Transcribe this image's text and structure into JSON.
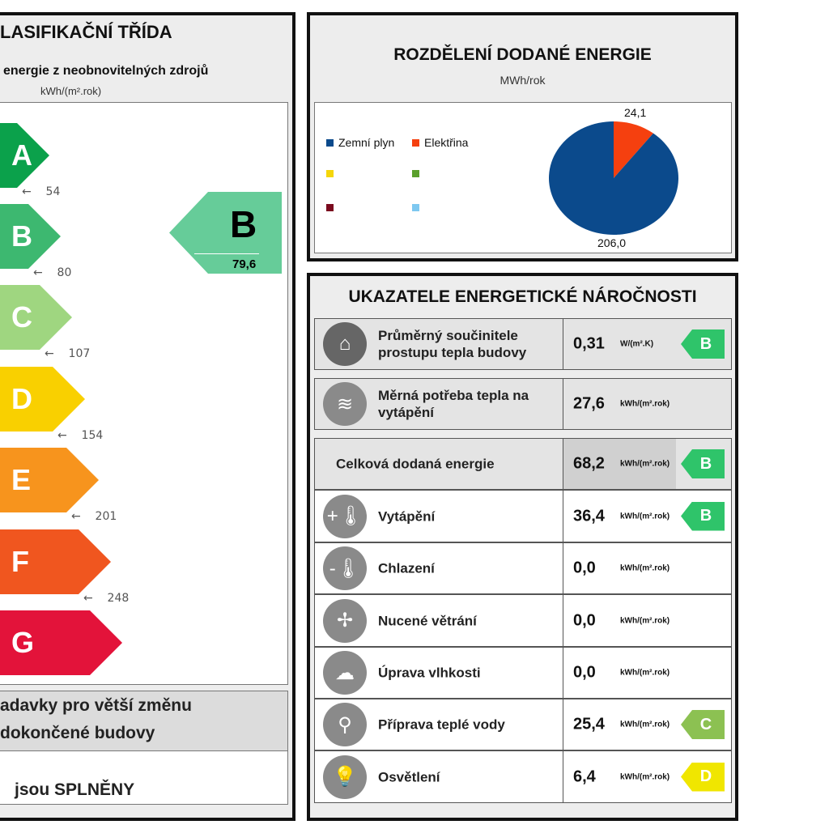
{
  "left": {
    "title": "LASIFIKAČNÍ TŘÍDA",
    "subtitle": "energie z neobnovitelných zdrojů",
    "unit": "kWh/(m².rok)",
    "classes": [
      {
        "label": "A",
        "color": "#0ba14b",
        "threshold": "54"
      },
      {
        "label": "B",
        "color": "#3db870",
        "threshold": "80"
      },
      {
        "label": "C",
        "color": "#9fd680",
        "threshold": "107"
      },
      {
        "label": "D",
        "color": "#f9d000",
        "threshold": "154"
      },
      {
        "label": "E",
        "color": "#f7941d",
        "threshold": "201"
      },
      {
        "label": "F",
        "color": "#f0561f",
        "threshold": "248"
      },
      {
        "label": "G",
        "color": "#e3133a",
        "threshold": ""
      }
    ],
    "indicator": {
      "label": "B",
      "value": "79,6",
      "color": "#66cc99"
    },
    "requirement_line1": "adavky pro větší změnu",
    "requirement_line2": "dokončené budovy",
    "result": "jsou SPLNĚNY"
  },
  "pie": {
    "title": "ROZDĚLENÍ DODANÉ ENERGIE",
    "unit": "MWh/rok",
    "legend": [
      {
        "name": "Zemní plyn",
        "color": "#0b4a8c"
      },
      {
        "name": "Elektřina",
        "color": "#f5400f"
      },
      {
        "name": "",
        "color": "#f5d60a"
      },
      {
        "name": "",
        "color": "#5aa02c"
      },
      {
        "name": "",
        "color": "#7a0a1e"
      },
      {
        "name": "",
        "color": "#7ec8f0"
      }
    ],
    "values": [
      {
        "label": "206,0",
        "value": 206.0
      },
      {
        "label": "24,1",
        "value": 24.1
      }
    ]
  },
  "ind": {
    "title": "UKAZATELE ENERGETICKÉ NÁROČNOSTI",
    "rows": [
      {
        "icon": "house-icon",
        "label": "Průměrný součinitele prostupu tepla budovy",
        "value": "0,31",
        "unit": "W/(m².K)",
        "badge": "B",
        "badge_color": "#2fc46a"
      },
      {
        "icon": "heat-demand-icon",
        "label": "Měrná potřeba tepla na vytápění",
        "value": "27,6",
        "unit": "kWh/(m².rok)",
        "badge": "",
        "badge_color": ""
      },
      {
        "icon": "",
        "label": "Celková dodaná energie",
        "value": "68,2",
        "unit": "kWh/(m².rok)",
        "badge": "B",
        "badge_color": "#2fc46a"
      },
      {
        "icon": "heating-icon",
        "label": "Vytápění",
        "value": "36,4",
        "unit": "kWh/(m².rok)",
        "badge": "B",
        "badge_color": "#2fc46a"
      },
      {
        "icon": "cooling-icon",
        "label": "Chlazení",
        "value": "0,0",
        "unit": "kWh/(m².rok)",
        "badge": "",
        "badge_color": ""
      },
      {
        "icon": "fan-icon",
        "label": "Nucené větrání",
        "value": "0,0",
        "unit": "kWh/(m².rok)",
        "badge": "",
        "badge_color": ""
      },
      {
        "icon": "humidity-icon",
        "label": "Úprava vlhkosti",
        "value": "0,0",
        "unit": "kWh/(m².rok)",
        "badge": "",
        "badge_color": ""
      },
      {
        "icon": "faucet-icon",
        "label": "Příprava teplé vody",
        "value": "25,4",
        "unit": "kWh/(m².rok)",
        "badge": "C",
        "badge_color": "#8cc152"
      },
      {
        "icon": "light-bulb-icon",
        "label": "Osvětlení",
        "value": "6,4",
        "unit": "kWh/(m².rok)",
        "badge": "D",
        "badge_color": "#f0e600"
      }
    ]
  }
}
